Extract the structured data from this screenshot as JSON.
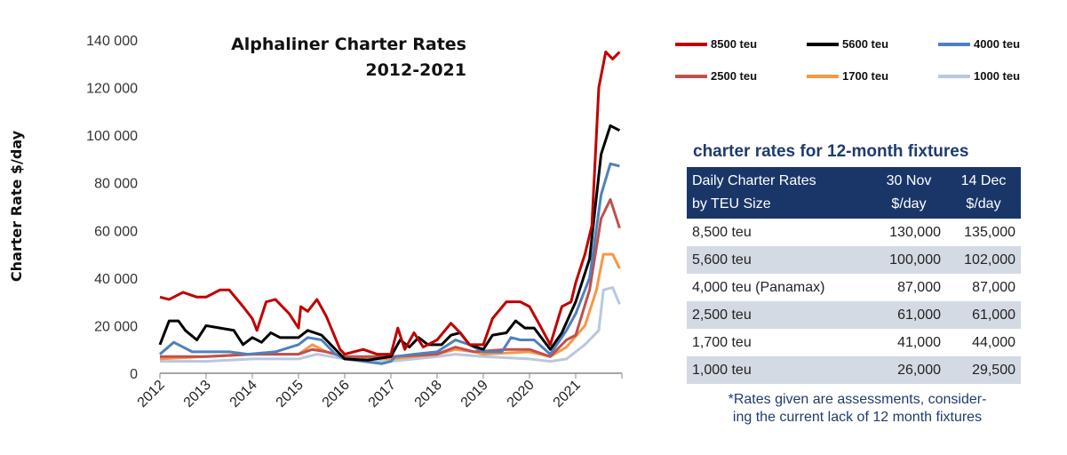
{
  "chart_data": {
    "type": "line",
    "title": [
      "Alphaliner Charter Rates",
      "2012-2021"
    ],
    "ylabel": "Charter Rate $/day",
    "xlabel": "",
    "xlim": [
      2012,
      2022
    ],
    "ylim": [
      0,
      140000
    ],
    "x_ticks": [
      "2012",
      "2013",
      "2014",
      "2015",
      "2016",
      "2017",
      "2018",
      "2019",
      "2020",
      "2021"
    ],
    "y_ticks": [
      "0",
      "20 000",
      "40 000",
      "60 000",
      "80 000",
      "100 000",
      "120 000",
      "140 000"
    ],
    "grid": false,
    "legend_position": "top-right",
    "series": [
      {
        "name": "8500 teu",
        "color": "#c00000",
        "points": [
          [
            2012,
            32000
          ],
          [
            2012.2,
            31000
          ],
          [
            2012.5,
            34000
          ],
          [
            2012.8,
            32000
          ],
          [
            2013,
            32000
          ],
          [
            2013.3,
            35000
          ],
          [
            2013.5,
            35000
          ],
          [
            2013.8,
            28000
          ],
          [
            2014,
            23000
          ],
          [
            2014.1,
            18000
          ],
          [
            2014.3,
            30000
          ],
          [
            2014.5,
            31000
          ],
          [
            2014.8,
            25000
          ],
          [
            2015,
            19000
          ],
          [
            2015.05,
            28000
          ],
          [
            2015.2,
            26000
          ],
          [
            2015.4,
            31000
          ],
          [
            2015.6,
            24000
          ],
          [
            2015.9,
            10000
          ],
          [
            2016,
            8000
          ],
          [
            2016.4,
            10000
          ],
          [
            2016.7,
            8000
          ],
          [
            2017,
            8000
          ],
          [
            2017.15,
            19000
          ],
          [
            2017.3,
            10000
          ],
          [
            2017.5,
            17000
          ],
          [
            2017.7,
            11000
          ],
          [
            2018,
            14000
          ],
          [
            2018.3,
            21000
          ],
          [
            2018.5,
            17000
          ],
          [
            2018.7,
            12000
          ],
          [
            2019,
            12000
          ],
          [
            2019.2,
            23000
          ],
          [
            2019.5,
            30000
          ],
          [
            2019.8,
            30000
          ],
          [
            2020,
            28000
          ],
          [
            2020.2,
            21000
          ],
          [
            2020.45,
            12000
          ],
          [
            2020.7,
            28000
          ],
          [
            2020.9,
            30000
          ],
          [
            2021,
            38000
          ],
          [
            2021.2,
            50000
          ],
          [
            2021.35,
            62000
          ],
          [
            2021.5,
            120000
          ],
          [
            2021.65,
            135000
          ],
          [
            2021.8,
            132000
          ],
          [
            2021.95,
            135000
          ]
        ]
      },
      {
        "name": "5600 teu",
        "color": "#000000",
        "points": [
          [
            2012,
            12000
          ],
          [
            2012.2,
            22000
          ],
          [
            2012.4,
            22000
          ],
          [
            2012.55,
            18000
          ],
          [
            2012.8,
            14000
          ],
          [
            2013,
            20000
          ],
          [
            2013.3,
            19000
          ],
          [
            2013.6,
            18000
          ],
          [
            2013.8,
            12000
          ],
          [
            2014,
            15000
          ],
          [
            2014.2,
            13000
          ],
          [
            2014.4,
            17000
          ],
          [
            2014.6,
            15000
          ],
          [
            2015,
            15000
          ],
          [
            2015.2,
            18000
          ],
          [
            2015.5,
            16000
          ],
          [
            2015.7,
            12000
          ],
          [
            2015.9,
            8000
          ],
          [
            2016,
            6000
          ],
          [
            2016.5,
            5500
          ],
          [
            2017,
            7000
          ],
          [
            2017.2,
            14000
          ],
          [
            2017.4,
            11000
          ],
          [
            2017.6,
            15000
          ],
          [
            2017.8,
            12000
          ],
          [
            2018.1,
            12000
          ],
          [
            2018.3,
            16000
          ],
          [
            2018.5,
            17000
          ],
          [
            2018.7,
            12000
          ],
          [
            2019,
            10000
          ],
          [
            2019.2,
            16000
          ],
          [
            2019.5,
            17000
          ],
          [
            2019.7,
            22000
          ],
          [
            2019.9,
            19000
          ],
          [
            2020.1,
            19000
          ],
          [
            2020.45,
            10000
          ],
          [
            2020.7,
            17000
          ],
          [
            2021,
            30000
          ],
          [
            2021.3,
            48000
          ],
          [
            2021.55,
            92000
          ],
          [
            2021.75,
            104000
          ],
          [
            2021.95,
            102000
          ]
        ]
      },
      {
        "name": "4000 teu",
        "color": "#4f81bd",
        "points": [
          [
            2012,
            8000
          ],
          [
            2012.3,
            13000
          ],
          [
            2012.7,
            9000
          ],
          [
            2013,
            9000
          ],
          [
            2013.5,
            9000
          ],
          [
            2013.9,
            8000
          ],
          [
            2014.5,
            9000
          ],
          [
            2015,
            12000
          ],
          [
            2015.2,
            15000
          ],
          [
            2015.5,
            14000
          ],
          [
            2015.8,
            8000
          ],
          [
            2016,
            6000
          ],
          [
            2016.8,
            4000
          ],
          [
            2017,
            5000
          ],
          [
            2017.1,
            7000
          ],
          [
            2017.5,
            8000
          ],
          [
            2018,
            9000
          ],
          [
            2018.4,
            14000
          ],
          [
            2018.7,
            12000
          ],
          [
            2019,
            9000
          ],
          [
            2019.4,
            9000
          ],
          [
            2019.6,
            15000
          ],
          [
            2019.8,
            14000
          ],
          [
            2020.1,
            14000
          ],
          [
            2020.45,
            8000
          ],
          [
            2020.8,
            18000
          ],
          [
            2021,
            25000
          ],
          [
            2021.3,
            40000
          ],
          [
            2021.55,
            75000
          ],
          [
            2021.75,
            88000
          ],
          [
            2021.95,
            87000
          ]
        ]
      },
      {
        "name": "2500 teu",
        "color": "#c0504d",
        "points": [
          [
            2012,
            7000
          ],
          [
            2013,
            7000
          ],
          [
            2014,
            8000
          ],
          [
            2015,
            8000
          ],
          [
            2015.3,
            10000
          ],
          [
            2015.6,
            9000
          ],
          [
            2016,
            7000
          ],
          [
            2017,
            7000
          ],
          [
            2018,
            8000
          ],
          [
            2018.4,
            11000
          ],
          [
            2018.8,
            9000
          ],
          [
            2019.5,
            10000
          ],
          [
            2020,
            10000
          ],
          [
            2020.45,
            7000
          ],
          [
            2020.8,
            14000
          ],
          [
            2021,
            16000
          ],
          [
            2021.3,
            35000
          ],
          [
            2021.55,
            65000
          ],
          [
            2021.75,
            73000
          ],
          [
            2021.95,
            61000
          ]
        ]
      },
      {
        "name": "1700 teu",
        "color": "#f79646",
        "points": [
          [
            2012,
            6000
          ],
          [
            2013,
            7000
          ],
          [
            2014,
            8000
          ],
          [
            2015,
            8000
          ],
          [
            2015.3,
            12000
          ],
          [
            2015.6,
            9000
          ],
          [
            2016,
            7000
          ],
          [
            2017,
            6000
          ],
          [
            2018,
            8000
          ],
          [
            2018.4,
            10000
          ],
          [
            2018.8,
            9000
          ],
          [
            2019,
            8000
          ],
          [
            2020,
            9000
          ],
          [
            2020.45,
            7000
          ],
          [
            2020.8,
            11000
          ],
          [
            2021.2,
            20000
          ],
          [
            2021.45,
            35000
          ],
          [
            2021.6,
            50000
          ],
          [
            2021.8,
            50000
          ],
          [
            2021.95,
            44000
          ]
        ]
      },
      {
        "name": "1000 teu",
        "color": "#b9c7e0",
        "points": [
          [
            2012,
            5000
          ],
          [
            2013,
            5000
          ],
          [
            2014,
            6000
          ],
          [
            2015,
            6000
          ],
          [
            2015.4,
            8000
          ],
          [
            2016,
            6000
          ],
          [
            2017,
            5000
          ],
          [
            2018,
            7000
          ],
          [
            2018.4,
            8000
          ],
          [
            2019,
            7000
          ],
          [
            2020,
            6000
          ],
          [
            2020.45,
            5000
          ],
          [
            2020.8,
            6000
          ],
          [
            2021.2,
            12000
          ],
          [
            2021.5,
            18000
          ],
          [
            2021.6,
            35000
          ],
          [
            2021.8,
            36000
          ],
          [
            2021.95,
            29000
          ]
        ]
      }
    ]
  },
  "table": {
    "title": "charter rates for 12-month fixtures",
    "headers": [
      [
        "Daily Charter Rates",
        "by TEU Size"
      ],
      [
        "30 Nov",
        "$/day"
      ],
      [
        "14 Dec",
        "$/day"
      ]
    ],
    "rows": [
      [
        "8,500 teu",
        "130,000",
        "135,000"
      ],
      [
        "5,600 teu",
        "100,000",
        "102,000"
      ],
      [
        "4,000 teu (Panamax)",
        "87,000",
        "87,000"
      ],
      [
        "2,500 teu",
        "61,000",
        "61,000"
      ],
      [
        "1,700 teu",
        "41,000",
        "44,000"
      ],
      [
        "1,000 teu",
        "26,000",
        "29,500"
      ]
    ],
    "header_color": "#1a3669",
    "alt_row_color": "#d4dae3",
    "note": [
      "*Rates given are assessments, consider-",
      "ing the current lack of 12 month fixtures"
    ]
  }
}
